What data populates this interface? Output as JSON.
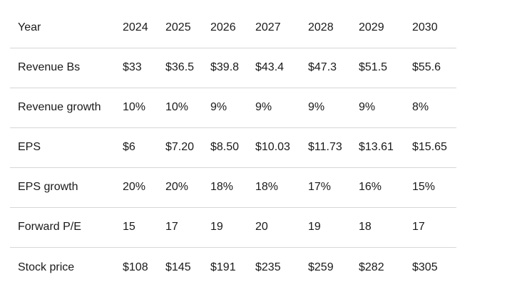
{
  "table": {
    "rows": [
      {
        "label": "Year",
        "values": [
          "2024",
          "2025",
          "2026",
          "2027",
          "2028",
          "2029",
          "2030"
        ]
      },
      {
        "label": "Revenue Bs",
        "values": [
          "$33",
          "$36.5",
          "$39.8",
          "$43.4",
          "$47.3",
          "$51.5",
          "$55.6"
        ]
      },
      {
        "label": "Revenue growth",
        "values": [
          "10%",
          "10%",
          "9%",
          "9%",
          "9%",
          "9%",
          "8%"
        ]
      },
      {
        "label": "EPS",
        "values": [
          "$6",
          "$7.20",
          "$8.50",
          "$10.03",
          "$11.73",
          "$13.61",
          "$15.65"
        ]
      },
      {
        "label": "EPS growth",
        "values": [
          "20%",
          "20%",
          "18%",
          "18%",
          "17%",
          "16%",
          "15%"
        ]
      },
      {
        "label": "Forward P/E",
        "values": [
          "15",
          "17",
          "19",
          "20",
          "19",
          "18",
          "17"
        ]
      },
      {
        "label": "Stock price",
        "values": [
          "$108",
          "$145",
          "$191",
          "$235",
          "$259",
          "$282",
          "$305"
        ]
      }
    ]
  },
  "colors": {
    "text": "#1a1a1a",
    "divider": "#d6d6d6",
    "background": "#ffffff"
  }
}
